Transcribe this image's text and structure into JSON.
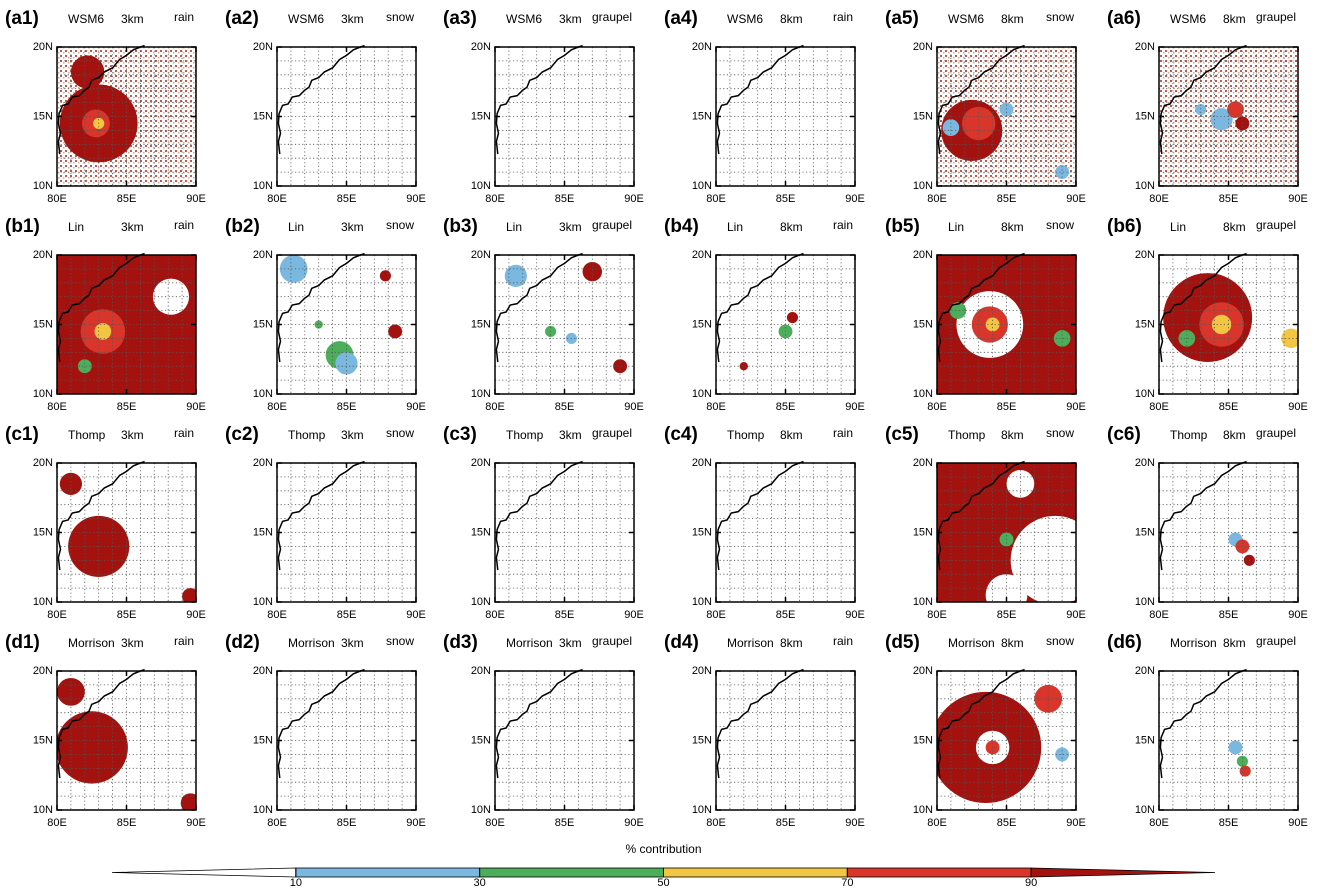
{
  "panels": [
    {
      "label": "(a1)",
      "scheme": "WSM6",
      "resolution": "3km",
      "species": "rain"
    },
    {
      "label": "(a2)",
      "scheme": "WSM6",
      "resolution": "3km",
      "species": "snow"
    },
    {
      "label": "(a3)",
      "scheme": "WSM6",
      "resolution": "3km",
      "species": "graupel"
    },
    {
      "label": "(a4)",
      "scheme": "WSM6",
      "resolution": "8km",
      "species": "rain"
    },
    {
      "label": "(a5)",
      "scheme": "WSM6",
      "resolution": "8km",
      "species": "snow"
    },
    {
      "label": "(a6)",
      "scheme": "WSM6",
      "resolution": "8km",
      "species": "graupel"
    },
    {
      "label": "(b1)",
      "scheme": "Lin",
      "resolution": "3km",
      "species": "rain"
    },
    {
      "label": "(b2)",
      "scheme": "Lin",
      "resolution": "3km",
      "species": "snow"
    },
    {
      "label": "(b3)",
      "scheme": "Lin",
      "resolution": "3km",
      "species": "graupel"
    },
    {
      "label": "(b4)",
      "scheme": "Lin",
      "resolution": "8km",
      "species": "rain"
    },
    {
      "label": "(b5)",
      "scheme": "Lin",
      "resolution": "8km",
      "species": "snow"
    },
    {
      "label": "(b6)",
      "scheme": "Lin",
      "resolution": "8km",
      "species": "graupel"
    },
    {
      "label": "(c1)",
      "scheme": "Thomp",
      "resolution": "3km",
      "species": "rain"
    },
    {
      "label": "(c2)",
      "scheme": "Thomp",
      "resolution": "3km",
      "species": "snow"
    },
    {
      "label": "(c3)",
      "scheme": "Thomp",
      "resolution": "3km",
      "species": "graupel"
    },
    {
      "label": "(c4)",
      "scheme": "Thomp",
      "resolution": "8km",
      "species": "rain"
    },
    {
      "label": "(c5)",
      "scheme": "Thomp",
      "resolution": "8km",
      "species": "snow"
    },
    {
      "label": "(c6)",
      "scheme": "Thomp",
      "resolution": "8km",
      "species": "graupel"
    },
    {
      "label": "(d1)",
      "scheme": "Morrison",
      "resolution": "3km",
      "species": "rain"
    },
    {
      "label": "(d2)",
      "scheme": "Morrison",
      "resolution": "3km",
      "species": "snow"
    },
    {
      "label": "(d3)",
      "scheme": "Morrison",
      "resolution": "3km",
      "species": "graupel"
    },
    {
      "label": "(d4)",
      "scheme": "Morrison",
      "resolution": "8km",
      "species": "rain"
    },
    {
      "label": "(d5)",
      "scheme": "Morrison",
      "resolution": "8km",
      "species": "snow"
    },
    {
      "label": "(d6)",
      "scheme": "Morrison",
      "resolution": "8km",
      "species": "graupel"
    }
  ],
  "axes": {
    "xlim": [
      80,
      90
    ],
    "ylim": [
      10,
      20
    ],
    "xticks": [
      {
        "value": 80,
        "label": "80E"
      },
      {
        "value": 85,
        "label": "85E"
      },
      {
        "value": 90,
        "label": "90E"
      }
    ],
    "yticks": [
      {
        "value": 10,
        "label": "10N"
      },
      {
        "value": 15,
        "label": "15N"
      },
      {
        "value": 20,
        "label": "20N"
      }
    ]
  },
  "colorbar": {
    "title": "% contribution",
    "ticks": [
      10,
      30,
      50,
      70,
      90
    ],
    "colors": [
      "#ffffff",
      "#7ab8e0",
      "#4cae5a",
      "#f2c542",
      "#d9352a",
      "#a3120f"
    ]
  }
}
